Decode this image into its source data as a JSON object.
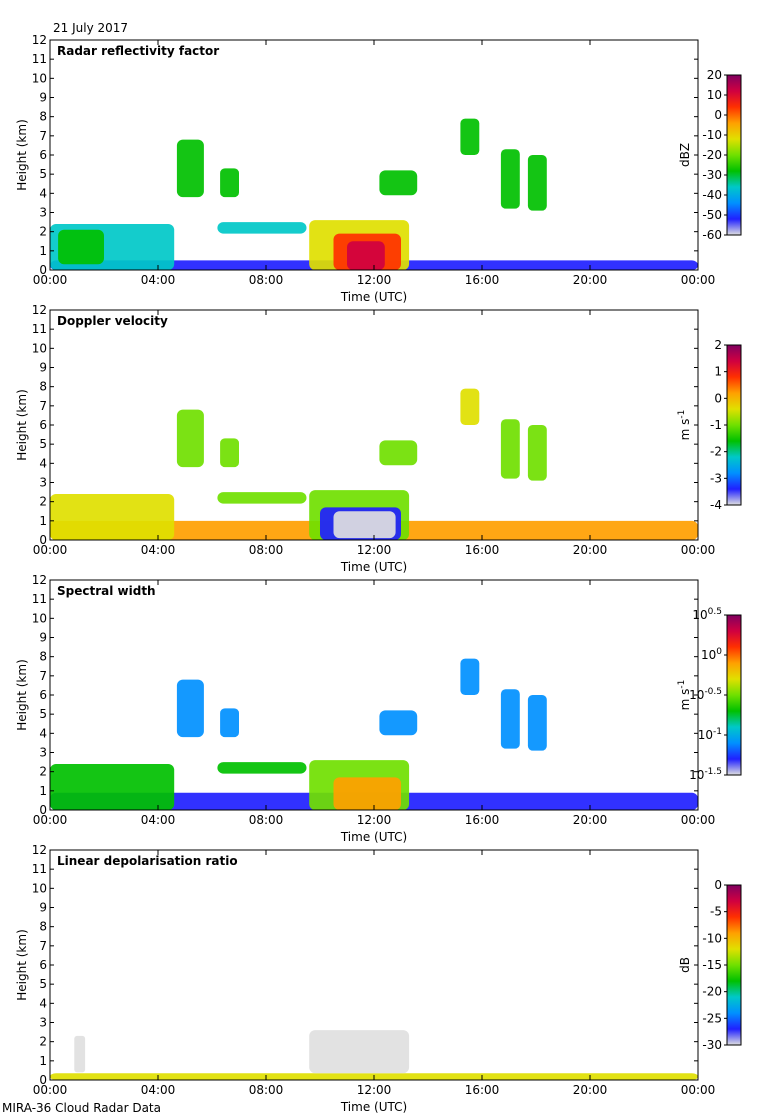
{
  "date": "21 July 2017",
  "footer": "MIRA-36 Cloud Radar Data",
  "colors": {
    "scale": [
      "#e0e0e0",
      "#2020ff",
      "#0090ff",
      "#00c8c8",
      "#00c000",
      "#70e000",
      "#e0e000",
      "#ffa000",
      "#ff3000",
      "#d00040",
      "#800060"
    ]
  },
  "chart_data": [
    {
      "type": "heatmap",
      "title": "Radar reflectivity factor",
      "xlabel": "Time (UTC)",
      "ylabel": "Height (km)",
      "x_ticks": [
        "00:00",
        "04:00",
        "08:00",
        "12:00",
        "16:00",
        "20:00",
        "00:00"
      ],
      "y_ticks": [
        "0",
        "1",
        "2",
        "3",
        "4",
        "5",
        "6",
        "7",
        "8",
        "9",
        "10",
        "11",
        "12"
      ],
      "ylim": [
        0,
        12
      ],
      "xlim_hours": [
        0,
        24
      ],
      "colorbar": {
        "label": "dBZ",
        "ticks": [
          "20",
          "10",
          "0",
          "-10",
          "-20",
          "-30",
          "-40",
          "-50",
          "-60"
        ],
        "range": [
          -60,
          20
        ]
      },
      "features": [
        {
          "t0": 0.0,
          "t1": 24.0,
          "z0": 0.0,
          "z1": 0.5,
          "c": 1
        },
        {
          "t0": 0.0,
          "t1": 4.6,
          "z0": 0.0,
          "z1": 2.4,
          "c": 3
        },
        {
          "t0": 0.3,
          "t1": 2.0,
          "z0": 0.3,
          "z1": 2.1,
          "c": 4
        },
        {
          "t0": 6.2,
          "t1": 9.5,
          "z0": 1.9,
          "z1": 2.5,
          "c": 3
        },
        {
          "t0": 9.6,
          "t1": 13.3,
          "z0": 0.0,
          "z1": 2.6,
          "c": 6
        },
        {
          "t0": 10.5,
          "t1": 13.0,
          "z0": 0.0,
          "z1": 1.9,
          "c": 8
        },
        {
          "t0": 11.0,
          "t1": 12.4,
          "z0": 0.0,
          "z1": 1.5,
          "c": 9
        },
        {
          "t0": 4.7,
          "t1": 5.7,
          "z0": 3.8,
          "z1": 6.8,
          "c": 4
        },
        {
          "t0": 6.3,
          "t1": 7.0,
          "z0": 3.8,
          "z1": 5.3,
          "c": 4
        },
        {
          "t0": 12.2,
          "t1": 13.6,
          "z0": 3.9,
          "z1": 5.2,
          "c": 4
        },
        {
          "t0": 15.2,
          "t1": 15.9,
          "z0": 6.0,
          "z1": 7.9,
          "c": 4
        },
        {
          "t0": 16.7,
          "t1": 17.4,
          "z0": 3.2,
          "z1": 6.3,
          "c": 4
        },
        {
          "t0": 17.7,
          "t1": 18.4,
          "z0": 3.1,
          "z1": 6.0,
          "c": 4
        }
      ]
    },
    {
      "type": "heatmap",
      "title": "Doppler velocity",
      "xlabel": "Time (UTC)",
      "ylabel": "Height (km)",
      "x_ticks": [
        "00:00",
        "04:00",
        "08:00",
        "12:00",
        "16:00",
        "20:00",
        "00:00"
      ],
      "y_ticks": [
        "0",
        "1",
        "2",
        "3",
        "4",
        "5",
        "6",
        "7",
        "8",
        "9",
        "10",
        "11",
        "12"
      ],
      "ylim": [
        0,
        12
      ],
      "xlim_hours": [
        0,
        24
      ],
      "colorbar": {
        "label": "m s-1",
        "ticks": [
          "2",
          "1",
          "0",
          "-1",
          "-2",
          "-3",
          "-4"
        ],
        "range": [
          -4,
          2
        ]
      },
      "features": [
        {
          "t0": 0.0,
          "t1": 24.0,
          "z0": 0.0,
          "z1": 1.0,
          "c": 7
        },
        {
          "t0": 0.0,
          "t1": 4.6,
          "z0": 0.0,
          "z1": 2.4,
          "c": 6
        },
        {
          "t0": 6.2,
          "t1": 9.5,
          "z0": 1.9,
          "z1": 2.5,
          "c": 5
        },
        {
          "t0": 9.6,
          "t1": 13.3,
          "z0": 0.0,
          "z1": 2.6,
          "c": 5
        },
        {
          "t0": 10.0,
          "t1": 13.0,
          "z0": 0.0,
          "z1": 1.7,
          "c": 1
        },
        {
          "t0": 10.5,
          "t1": 12.8,
          "z0": 0.1,
          "z1": 1.5,
          "c": 0
        },
        {
          "t0": 4.7,
          "t1": 5.7,
          "z0": 3.8,
          "z1": 6.8,
          "c": 5
        },
        {
          "t0": 6.3,
          "t1": 7.0,
          "z0": 3.8,
          "z1": 5.3,
          "c": 5
        },
        {
          "t0": 12.2,
          "t1": 13.6,
          "z0": 3.9,
          "z1": 5.2,
          "c": 5
        },
        {
          "t0": 15.2,
          "t1": 15.9,
          "z0": 6.0,
          "z1": 7.9,
          "c": 6
        },
        {
          "t0": 16.7,
          "t1": 17.4,
          "z0": 3.2,
          "z1": 6.3,
          "c": 5
        },
        {
          "t0": 17.7,
          "t1": 18.4,
          "z0": 3.1,
          "z1": 6.0,
          "c": 5
        }
      ]
    },
    {
      "type": "heatmap",
      "title": "Spectral width",
      "xlabel": "Time (UTC)",
      "ylabel": "Height (km)",
      "x_ticks": [
        "00:00",
        "04:00",
        "08:00",
        "12:00",
        "16:00",
        "20:00",
        "00:00"
      ],
      "y_ticks": [
        "0",
        "1",
        "2",
        "3",
        "4",
        "5",
        "6",
        "7",
        "8",
        "9",
        "10",
        "11",
        "12"
      ],
      "ylim": [
        0,
        12
      ],
      "xlim_hours": [
        0,
        24
      ],
      "colorbar": {
        "label": "m s-1",
        "ticks": [
          "10^0.5",
          "10^0",
          "10^-0.5",
          "10^-1",
          "10^-1.5"
        ],
        "range": [
          -1.5,
          0.5
        ]
      },
      "features": [
        {
          "t0": 0.0,
          "t1": 24.0,
          "z0": 0.0,
          "z1": 0.9,
          "c": 1
        },
        {
          "t0": 0.0,
          "t1": 4.6,
          "z0": 0.0,
          "z1": 2.4,
          "c": 4
        },
        {
          "t0": 6.2,
          "t1": 9.5,
          "z0": 1.9,
          "z1": 2.5,
          "c": 4
        },
        {
          "t0": 9.6,
          "t1": 13.3,
          "z0": 0.0,
          "z1": 2.6,
          "c": 5
        },
        {
          "t0": 10.5,
          "t1": 13.0,
          "z0": 0.0,
          "z1": 1.7,
          "c": 7
        },
        {
          "t0": 4.7,
          "t1": 5.7,
          "z0": 3.8,
          "z1": 6.8,
          "c": 2
        },
        {
          "t0": 6.3,
          "t1": 7.0,
          "z0": 3.8,
          "z1": 5.3,
          "c": 2
        },
        {
          "t0": 12.2,
          "t1": 13.6,
          "z0": 3.9,
          "z1": 5.2,
          "c": 2
        },
        {
          "t0": 15.2,
          "t1": 15.9,
          "z0": 6.0,
          "z1": 7.9,
          "c": 2
        },
        {
          "t0": 16.7,
          "t1": 17.4,
          "z0": 3.2,
          "z1": 6.3,
          "c": 2
        },
        {
          "t0": 17.7,
          "t1": 18.4,
          "z0": 3.1,
          "z1": 6.0,
          "c": 2
        }
      ]
    },
    {
      "type": "heatmap",
      "title": "Linear depolarisation ratio",
      "xlabel": "Time (UTC)",
      "ylabel": "Height (km)",
      "x_ticks": [
        "00:00",
        "04:00",
        "08:00",
        "12:00",
        "16:00",
        "20:00",
        "00:00"
      ],
      "y_ticks": [
        "0",
        "1",
        "2",
        "3",
        "4",
        "5",
        "6",
        "7",
        "8",
        "9",
        "10",
        "11",
        "12"
      ],
      "ylim": [
        0,
        12
      ],
      "xlim_hours": [
        0,
        24
      ],
      "colorbar": {
        "label": "dB",
        "ticks": [
          "0",
          "-5",
          "-10",
          "-15",
          "-20",
          "-25",
          "-30"
        ],
        "range": [
          -30,
          0
        ]
      },
      "features": [
        {
          "t0": 0.0,
          "t1": 24.0,
          "z0": 0.0,
          "z1": 0.35,
          "c": 6
        },
        {
          "t0": 9.6,
          "t1": 13.3,
          "z0": 0.35,
          "z1": 2.6,
          "c": 0
        },
        {
          "t0": 0.9,
          "t1": 1.3,
          "z0": 0.4,
          "z1": 2.3,
          "c": 0
        }
      ]
    }
  ]
}
